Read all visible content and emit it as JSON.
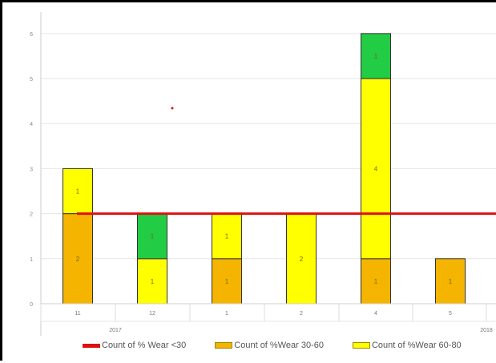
{
  "chart_data": {
    "type": "bar",
    "stacked": true,
    "categories": [
      "11",
      "12",
      "1",
      "2",
      "4",
      "5"
    ],
    "year_labels": [
      "2017",
      "2018"
    ],
    "y_ticks": [
      "0",
      "1",
      "2",
      "3",
      "4",
      "5",
      "6"
    ],
    "ylim": [
      0,
      6.3
    ],
    "series": [
      {
        "name": "Count of %Wear 30-60",
        "color": "#f4b400",
        "values": [
          2,
          0,
          1,
          0,
          1,
          1
        ],
        "labels": [
          "2",
          "",
          "1",
          "",
          "1",
          "1"
        ]
      },
      {
        "name": "Count of %Wear 60-80",
        "color": "#ffff00",
        "values": [
          1,
          1,
          1,
          2,
          4,
          0
        ],
        "labels": [
          "1",
          "1",
          "1",
          "2",
          "4",
          ""
        ]
      },
      {
        "name": "",
        "color": "#22cc44",
        "values": [
          0,
          1,
          0,
          0,
          1,
          0
        ],
        "labels": [
          "",
          "1",
          "",
          "",
          "1",
          ""
        ]
      }
    ],
    "reference_line": {
      "name": "Count of % Wear <30",
      "value": 2,
      "color": "#dd1111"
    },
    "legend": [
      "Count of % Wear <30",
      "Count of %Wear 30-60",
      "Count of %Wear 60-80"
    ],
    "legend_position": "bottom",
    "grid": true
  },
  "legend_colors": {
    "line": "#dd1111",
    "orange": "#f4b400",
    "yellow": "#ffff00"
  }
}
